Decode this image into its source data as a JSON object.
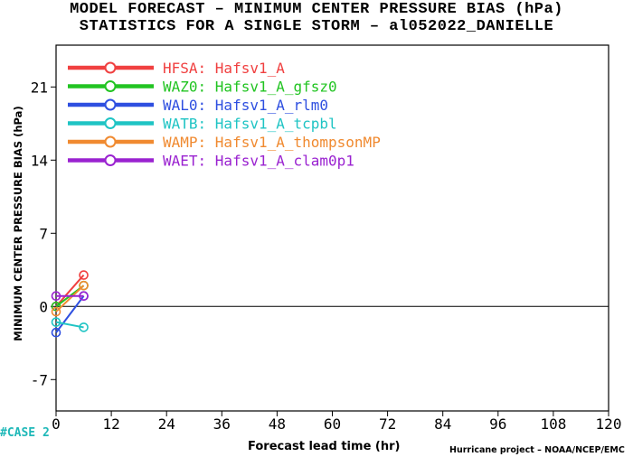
{
  "header": {
    "title_line1": "MODEL FORECAST – MINIMUM CENTER PRESSURE BIAS (hPa)",
    "title_line2": "STATISTICS FOR A SINGLE STORM – al052022_DANIELLE"
  },
  "footer": {
    "xlabel": "Forecast lead time (hr)",
    "credit": "Hurricane project – NOAA/NCEP/EMC",
    "case_label": "#CASE  2"
  },
  "chart_data": {
    "type": "line",
    "title": "MODEL FORECAST – MINIMUM CENTER PRESSURE BIAS (hPa)",
    "subtitle": "STATISTICS FOR A SINGLE STORM – al052022_DANIELLE",
    "xlabel": "Forecast lead time (hr)",
    "ylabel": "MINIMUM CENTER PRESSURE BIAS (hPa)",
    "xlim": [
      0,
      120
    ],
    "ylim": [
      -10,
      25
    ],
    "xticks": [
      "0",
      "12",
      "24",
      "36",
      "48",
      "60",
      "72",
      "84",
      "96",
      "108",
      "120"
    ],
    "xtick_values": [
      0,
      12,
      24,
      36,
      48,
      60,
      72,
      84,
      96,
      108,
      120
    ],
    "yticks": [
      "-7",
      "0",
      "7",
      "14",
      "21"
    ],
    "ytick_values": [
      -7,
      0,
      7,
      14,
      21
    ],
    "zero_line": true,
    "grid": false,
    "legend_position": "top-left",
    "series": [
      {
        "name": "HFSA: Hafsv1_A",
        "color": "#f04040",
        "x": [
          0,
          6
        ],
        "y": [
          0,
          3
        ]
      },
      {
        "name": "WAZ0: Hafsv1_A_gfsz0",
        "color": "#22c422",
        "x": [
          0,
          6
        ],
        "y": [
          0,
          2
        ]
      },
      {
        "name": "WAL0: Hafsv1_A_rlm0",
        "color": "#2e4fe0",
        "x": [
          0,
          6
        ],
        "y": [
          -2.5,
          1
        ]
      },
      {
        "name": "WATB: Hafsv1_A_tcpbl",
        "color": "#1fc4c4",
        "x": [
          0,
          6
        ],
        "y": [
          -1.5,
          -2
        ]
      },
      {
        "name": "WAMP: Hafsv1_A_thompsonMP",
        "color": "#f08a30",
        "x": [
          0,
          6
        ],
        "y": [
          -0.5,
          2
        ]
      },
      {
        "name": "WAET: Hafsv1_A_clam0p1",
        "color": "#9a22d0",
        "x": [
          0,
          6
        ],
        "y": [
          1,
          1
        ]
      }
    ]
  }
}
